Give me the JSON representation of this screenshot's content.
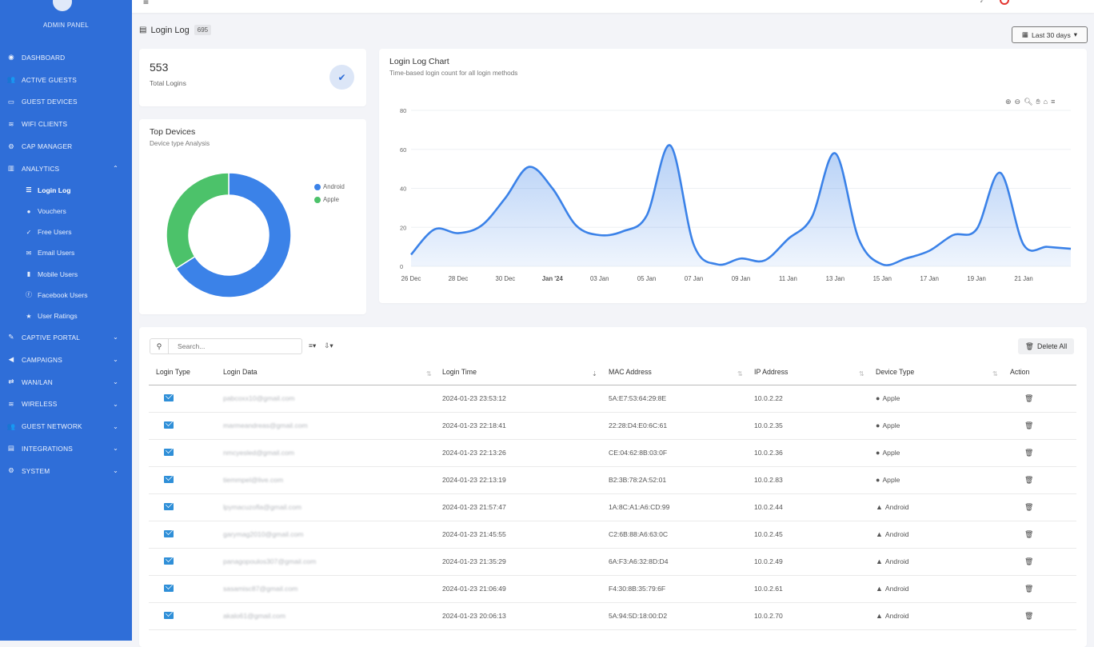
{
  "sidebar": {
    "brand": "ADMIN PANEL",
    "items": [
      {
        "label": "DASHBOARD",
        "icon": "dashboard-icon",
        "glyph": "◉"
      },
      {
        "label": "ACTIVE GUESTS",
        "icon": "users-icon",
        "glyph": "👥"
      },
      {
        "label": "GUEST DEVICES",
        "icon": "laptop-icon",
        "glyph": "▭"
      },
      {
        "label": "WIFI CLIENTS",
        "icon": "wifi-icon",
        "glyph": "≋"
      },
      {
        "label": "CAP MANAGER",
        "icon": "gear-icon",
        "glyph": "⚙"
      },
      {
        "label": "ANALYTICS",
        "icon": "chart-icon",
        "glyph": "▥",
        "chevron": "⌃"
      }
    ],
    "subitems": [
      {
        "label": "Login Log",
        "icon": "list-icon",
        "glyph": "☰",
        "active": true
      },
      {
        "label": "Vouchers",
        "icon": "user-icon",
        "glyph": "●"
      },
      {
        "label": "Free Users",
        "icon": "check-icon",
        "glyph": "✓"
      },
      {
        "label": "Email Users",
        "icon": "envelope-icon",
        "glyph": "✉"
      },
      {
        "label": "Mobile Users",
        "icon": "mobile-icon",
        "glyph": "▮"
      },
      {
        "label": "Facebook Users",
        "icon": "facebook-icon",
        "glyph": "ⓕ"
      },
      {
        "label": "User Ratings",
        "icon": "star-icon",
        "glyph": "★"
      }
    ],
    "items2": [
      {
        "label": "CAPTIVE PORTAL",
        "icon": "edit-icon",
        "glyph": "✎",
        "chevron": "⌄"
      },
      {
        "label": "CAMPAIGNS",
        "icon": "megaphone-icon",
        "glyph": "◀",
        "chevron": "⌄"
      },
      {
        "label": "WAN/LAN",
        "icon": "arrows-icon",
        "glyph": "⇄",
        "chevron": "⌄"
      },
      {
        "label": "WIRELESS",
        "icon": "wifi-icon",
        "glyph": "≋",
        "chevron": "⌄"
      },
      {
        "label": "GUEST NETWORK",
        "icon": "users-icon",
        "glyph": "👥",
        "chevron": "⌄"
      },
      {
        "label": "INTEGRATIONS",
        "icon": "grid-icon",
        "glyph": "▤",
        "chevron": "⌄"
      },
      {
        "label": "SYSTEM",
        "icon": "cog-icon",
        "glyph": "⚙",
        "chevron": "⌄"
      }
    ]
  },
  "header": {
    "title": "Login Log",
    "count": "695",
    "date_range": "Last 30 days"
  },
  "total_card": {
    "value": "553",
    "label": "Total Logins"
  },
  "devices_card": {
    "title": "Top Devices",
    "subtitle": "Device type Analysis"
  },
  "chart_card": {
    "title": "Login Log Chart",
    "subtitle": "Time-based login count for all login methods"
  },
  "chart_data": [
    {
      "type": "pie",
      "labels": [
        "Android",
        "Apple"
      ],
      "values": [
        66,
        34
      ],
      "colors": [
        "#3b82e8",
        "#4cc26a"
      ],
      "legend_position": "top-right"
    },
    {
      "type": "area",
      "x": [
        "2023-12-26",
        "2023-12-27",
        "2023-12-28",
        "2023-12-29",
        "2023-12-30",
        "2023-12-31",
        "2024-01-01",
        "2024-01-02",
        "2024-01-03",
        "2024-01-04",
        "2024-01-05",
        "2024-01-06",
        "2024-01-07",
        "2024-01-08",
        "2024-01-09",
        "2024-01-10",
        "2024-01-11",
        "2024-01-12",
        "2024-01-13",
        "2024-01-14",
        "2024-01-15",
        "2024-01-16",
        "2024-01-17",
        "2024-01-18",
        "2024-01-19",
        "2024-01-20",
        "2024-01-21",
        "2024-01-22",
        "2024-01-23"
      ],
      "series": [
        {
          "values": [
            6,
            19,
            17,
            21,
            35,
            51,
            40,
            21,
            16,
            18,
            26,
            62,
            11,
            1,
            4,
            3,
            14,
            25,
            58,
            14,
            1,
            4,
            8,
            16,
            19,
            48,
            11,
            10,
            9
          ]
        }
      ],
      "x_tick_labels": [
        "26 Dec",
        "28 Dec",
        "30 Dec",
        "Jan '24",
        "03 Jan",
        "05 Jan",
        "07 Jan",
        "09 Jan",
        "11 Jan",
        "13 Jan",
        "15 Jan",
        "17 Jan",
        "19 Jan",
        "21 Jan"
      ],
      "y_ticks": [
        0,
        20,
        40,
        60,
        80
      ],
      "ylim": [
        0,
        80
      ],
      "grid": true,
      "color": "#3b82e8"
    }
  ],
  "table": {
    "search_placeholder": "Search...",
    "delete_all": "Delete All",
    "columns": [
      "Login Type",
      "Login Data",
      "Login Time",
      "MAC Address",
      "IP Address",
      "Device Type",
      "Action"
    ],
    "rows": [
      {
        "data": "pabcoxx10@gmail.com",
        "time": "2024-01-23 23:53:12",
        "mac": "5A:E7:53:64:29:8E",
        "ip": "10.0.2.22",
        "device": "Apple"
      },
      {
        "data": "marmeandreas@gmail.com",
        "time": "2024-01-23 22:18:41",
        "mac": "22:28:D4:E0:6C:61",
        "ip": "10.0.2.35",
        "device": "Apple"
      },
      {
        "data": "nmcyesled@gmail.com",
        "time": "2024-01-23 22:13:26",
        "mac": "CE:04:62:8B:03:0F",
        "ip": "10.0.2.36",
        "device": "Apple"
      },
      {
        "data": "tiemmpel@live.com",
        "time": "2024-01-23 22:13:19",
        "mac": "B2:3B:78:2A:52:01",
        "ip": "10.0.2.83",
        "device": "Apple"
      },
      {
        "data": "lpymacuzofla@gmail.com",
        "time": "2024-01-23 21:57:47",
        "mac": "1A:8C:A1:A6:CD:99",
        "ip": "10.0.2.44",
        "device": "Android"
      },
      {
        "data": "garymag2010@gmail.com",
        "time": "2024-01-23 21:45:55",
        "mac": "C2:6B:88:A6:63:0C",
        "ip": "10.0.2.45",
        "device": "Android"
      },
      {
        "data": "panagopoulos307@gmail.com",
        "time": "2024-01-23 21:35:29",
        "mac": "6A:F3:A6:32:8D:D4",
        "ip": "10.0.2.49",
        "device": "Android"
      },
      {
        "data": "sasamisc87@gmail.com",
        "time": "2024-01-23 21:06:49",
        "mac": "F4:30:8B:35:79:6F",
        "ip": "10.0.2.61",
        "device": "Android"
      },
      {
        "data": "akalo61@gmail.com",
        "time": "2024-01-23 20:06:13",
        "mac": "5A:94:5D:18:00:D2",
        "ip": "10.0.2.70",
        "device": "Android"
      }
    ]
  }
}
